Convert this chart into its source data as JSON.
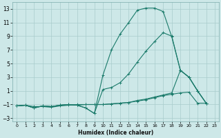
{
  "title": "",
  "xlabel": "Humidex (Indice chaleur)",
  "ylabel": "",
  "background_color": "#cde8e8",
  "grid_color": "#a8cccc",
  "line_color": "#1a7a6a",
  "xlim": [
    -0.5,
    23.5
  ],
  "ylim": [
    -3.5,
    14.0
  ],
  "xticks": [
    0,
    1,
    2,
    3,
    4,
    5,
    6,
    7,
    8,
    9,
    10,
    11,
    12,
    13,
    14,
    15,
    16,
    17,
    18,
    19,
    20,
    21,
    22,
    23
  ],
  "yticks": [
    -3,
    -1,
    1,
    3,
    5,
    7,
    9,
    11,
    13
  ],
  "series": [
    {
      "x": [
        0,
        1,
        2,
        3,
        4,
        5,
        6,
        7,
        8,
        9,
        10,
        11,
        12,
        13,
        14,
        15,
        16,
        17,
        18,
        19,
        20,
        21,
        22
      ],
      "y": [
        -1.2,
        -1.1,
        -1.5,
        -1.2,
        -1.3,
        -1.1,
        -1.0,
        -1.1,
        -1.5,
        -2.3,
        3.3,
        7.0,
        9.3,
        11.0,
        12.8,
        13.1,
        13.1,
        12.6,
        8.9,
        4.0,
        3.0,
        1.0,
        -0.8
      ]
    },
    {
      "x": [
        0,
        1,
        2,
        3,
        4,
        5,
        6,
        7,
        8,
        9,
        10,
        11,
        12,
        13,
        14,
        15,
        16,
        17,
        18,
        19,
        20,
        21,
        22
      ],
      "y": [
        -1.2,
        -1.1,
        -1.5,
        -1.2,
        -1.3,
        -1.1,
        -1.0,
        -1.1,
        -1.5,
        -2.3,
        1.2,
        1.5,
        2.2,
        3.5,
        5.2,
        6.8,
        8.2,
        9.5,
        9.0,
        4.0,
        3.0,
        1.0,
        -0.8
      ]
    },
    {
      "x": [
        0,
        1,
        2,
        3,
        4,
        5,
        6,
        7,
        8,
        9,
        10,
        11,
        12,
        13,
        14,
        15,
        16,
        17,
        18,
        19,
        20,
        21,
        22
      ],
      "y": [
        -1.2,
        -1.1,
        -1.5,
        -1.2,
        -1.3,
        -1.1,
        -1.0,
        -1.1,
        -1.0,
        -1.0,
        -1.0,
        -0.9,
        -0.8,
        -0.7,
        -0.4,
        -0.2,
        0.1,
        0.4,
        0.7,
        4.0,
        3.0,
        1.0,
        -0.8
      ]
    },
    {
      "x": [
        0,
        1,
        2,
        3,
        4,
        5,
        6,
        7,
        8,
        9,
        10,
        11,
        12,
        13,
        14,
        15,
        16,
        17,
        18,
        19,
        20,
        21,
        22
      ],
      "y": [
        -1.2,
        -1.1,
        -1.3,
        -1.3,
        -1.4,
        -1.2,
        -1.1,
        -1.0,
        -1.0,
        -1.0,
        -1.0,
        -0.9,
        -0.8,
        -0.7,
        -0.5,
        -0.3,
        0.0,
        0.3,
        0.5,
        0.7,
        0.8,
        -0.8,
        -0.8
      ]
    }
  ]
}
